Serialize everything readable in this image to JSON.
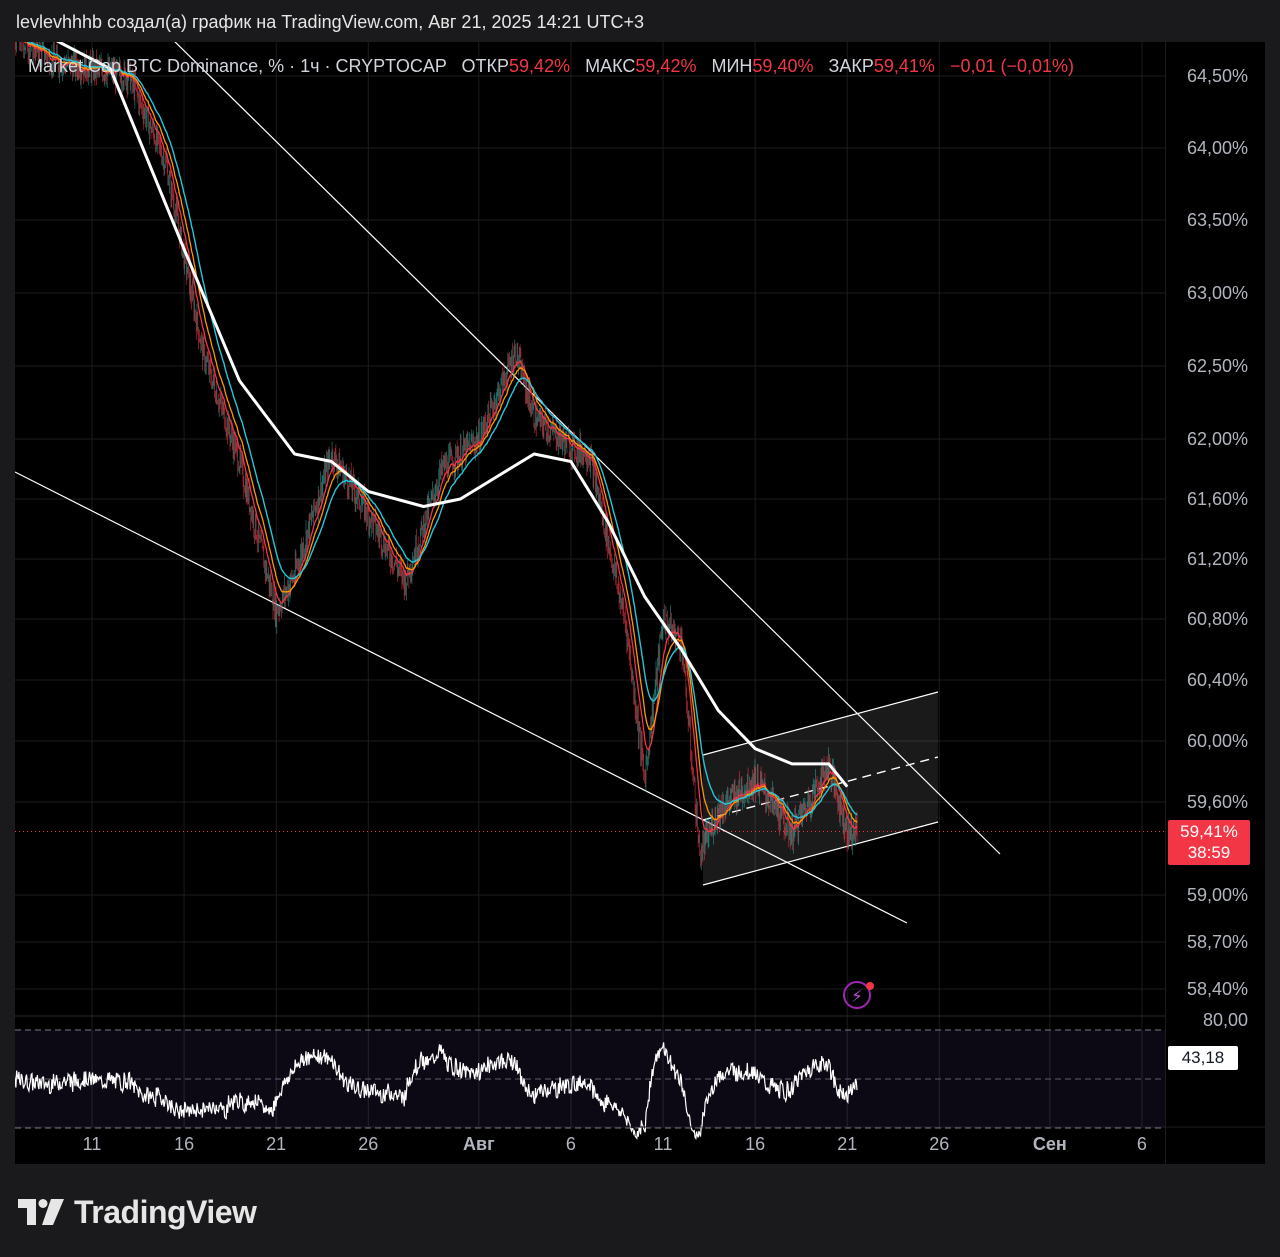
{
  "caption": "levlevhhhb создал(а) график на TradingView.com, Авг 21, 2025 14:21 UTC+3",
  "legend": {
    "symbol": "Market Cap BTC Dominance, % · 1ч · CRYPTOCAP",
    "open_label": "ОТКР",
    "open_value": "59,42%",
    "high_label": "МАКС",
    "high_value": "59,42%",
    "low_label": "МИН",
    "low_value": "59,40%",
    "close_label": "ЗАКР",
    "close_value": "59,41%",
    "change": "−0,01 (−0,01%)"
  },
  "price_badge": {
    "value": "59,41%",
    "countdown": "38:59"
  },
  "rsi_badge": "43,18",
  "logo": "TradingView",
  "colors": {
    "up": "#26a69a",
    "down": "#f23645",
    "ma_long": "#ffffff",
    "ma_teal": "#26c6da",
    "ma_orange": "#ff9800",
    "ma_red": "#f23645"
  },
  "chart_data": {
    "type": "line",
    "ylabel_unit": "%",
    "y_ticks": [
      "64,50%",
      "64,00%",
      "63,50%",
      "63,00%",
      "62,50%",
      "62,00%",
      "61,60%",
      "61,20%",
      "60,80%",
      "60,40%",
      "60,00%",
      "59,60%",
      "59,00%",
      "58,70%",
      "58,40%"
    ],
    "x_ticks": [
      "11",
      "16",
      "21",
      "26",
      "Авг",
      "6",
      "11",
      "16",
      "21",
      "26",
      "Сен",
      "6"
    ],
    "price_series": {
      "name": "BTC Dominance",
      "x": [
        "Jul 7",
        "Jul 9",
        "Jul 11",
        "Jul 13",
        "Jul 15",
        "Jul 17",
        "Jul 19",
        "Jul 21",
        "Jul 22",
        "Jul 24",
        "Jul 26",
        "Jul 28",
        "Jul 30",
        "Aug 1",
        "Aug 3",
        "Aug 4",
        "Aug 6",
        "Aug 7",
        "Aug 9",
        "Aug 10",
        "Aug 11",
        "Aug 12",
        "Aug 13",
        "Aug 14",
        "Aug 16",
        "Aug 18",
        "Aug 20",
        "Aug 21"
      ],
      "y": [
        64.75,
        64.6,
        64.55,
        64.5,
        63.9,
        62.6,
        61.85,
        60.85,
        61.1,
        61.9,
        61.5,
        61.05,
        61.8,
        62.0,
        62.6,
        62.15,
        61.95,
        61.9,
        60.75,
        59.75,
        60.8,
        60.65,
        59.25,
        59.55,
        59.75,
        59.4,
        59.85,
        59.41
      ]
    },
    "ma_long": {
      "x": [
        "Jul 9",
        "Jul 12",
        "Jul 16",
        "Jul 19",
        "Jul 22",
        "Jul 24",
        "Jul 26",
        "Jul 29",
        "Jul 31",
        "Aug 2",
        "Aug 4",
        "Aug 6",
        "Aug 8",
        "Aug 10",
        "Aug 12",
        "Aug 14",
        "Aug 16",
        "Aug 18",
        "Aug 20",
        "Aug 21"
      ],
      "y": [
        64.75,
        64.55,
        63.3,
        62.4,
        61.9,
        61.85,
        61.65,
        61.55,
        61.6,
        61.75,
        61.9,
        61.85,
        61.45,
        60.95,
        60.6,
        60.2,
        59.95,
        59.85,
        59.85,
        59.7
      ]
    },
    "rsi": {
      "upper": 80,
      "lower": 20,
      "current": 43.18,
      "tick_label": "80,00"
    },
    "drawings": {
      "falling_wedge": "descending trendlines (upper resistance and lower support)",
      "channel": "ascending channel with dashed midline (Aug 13 – Aug 26)"
    }
  }
}
